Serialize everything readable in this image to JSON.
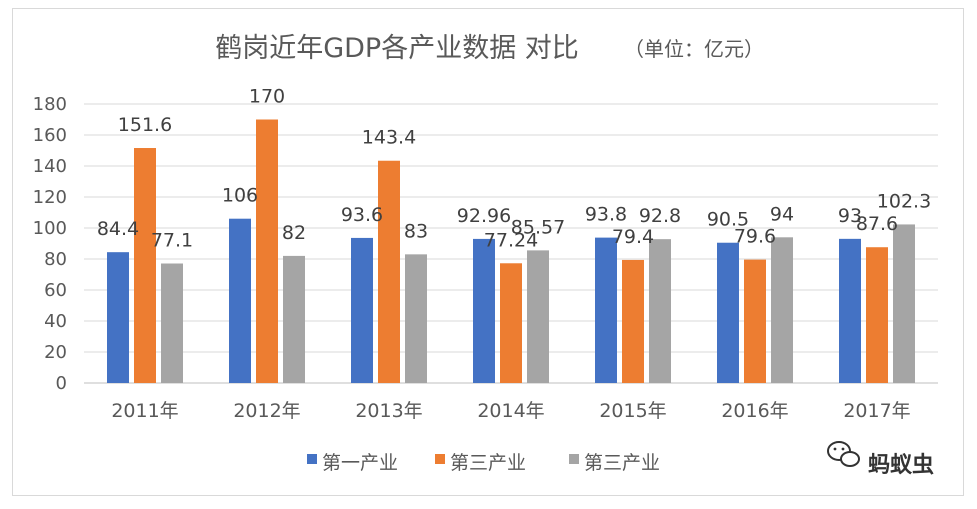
{
  "chart_data": {
    "type": "bar",
    "title": "鹤岗近年GDP各产业数据 对比",
    "subtitle": "（单位：亿元）",
    "categories": [
      "2011年",
      "2012年",
      "2013年",
      "2014年",
      "2015年",
      "2016年",
      "2017年"
    ],
    "series": [
      {
        "name": "第一产业",
        "color": "#4472c4",
        "values": [
          84.4,
          106,
          93.6,
          92.96,
          93.8,
          90.5,
          93
        ],
        "labels": [
          "84.4",
          "106",
          "93.6",
          "92.96",
          "93.8",
          "90.5",
          "93"
        ]
      },
      {
        "name": "第三产业",
        "color": "#ed7d31",
        "values": [
          151.6,
          170,
          143.4,
          77.24,
          79.4,
          79.6,
          87.6
        ],
        "labels": [
          "151.6",
          "170",
          "143.4",
          "77.24",
          "79.4",
          "79.6",
          "87.6"
        ]
      },
      {
        "name": "第三产业",
        "color": "#a5a5a5",
        "values": [
          77.1,
          82,
          83,
          85.57,
          92.8,
          94,
          102.3
        ],
        "labels": [
          "77.1",
          "82",
          "83",
          "85.57",
          "92.8",
          "94",
          "102.3"
        ]
      }
    ],
    "ylim": [
      0,
      180
    ],
    "yticks": [
      0,
      20,
      40,
      60,
      80,
      100,
      120,
      140,
      160,
      180
    ],
    "grid": true,
    "legend": "bottom"
  },
  "watermark": {
    "text": "蚂蚁虫",
    "icon": "wechat-icon"
  }
}
